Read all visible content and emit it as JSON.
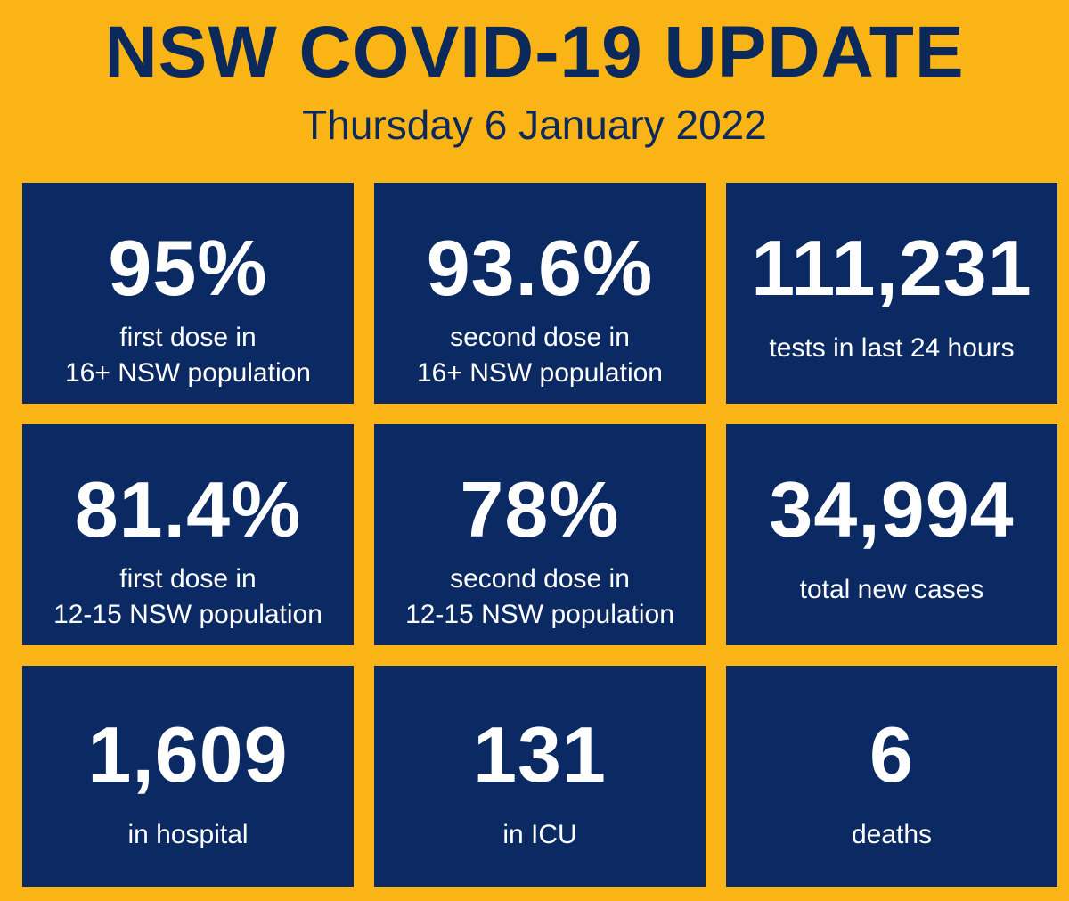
{
  "header": {
    "title": "NSW COVID-19 UPDATE",
    "date": "Thursday 6 January 2022"
  },
  "colors": {
    "background": "#FBB416",
    "tile": "#0B2A63",
    "title_text": "#0B2A5B",
    "tile_text": "#FFFFFF"
  },
  "stats": [
    {
      "value": "95%",
      "label_line1": "first dose in",
      "label_line2": "16+ NSW population"
    },
    {
      "value": "93.6%",
      "label_line1": "second dose in",
      "label_line2": "16+ NSW population"
    },
    {
      "value": "111,231",
      "label": "tests in last 24 hours"
    },
    {
      "value": "81.4%",
      "label_line1": "first dose in",
      "label_line2": "12-15 NSW population"
    },
    {
      "value": "78%",
      "label_line1": "second dose in",
      "label_line2": "12-15 NSW population"
    },
    {
      "value": "34,994",
      "label": "total new cases"
    },
    {
      "value": "1,609",
      "label": "in hospital"
    },
    {
      "value": "131",
      "label": "in ICU"
    },
    {
      "value": "6",
      "label": "deaths"
    }
  ]
}
